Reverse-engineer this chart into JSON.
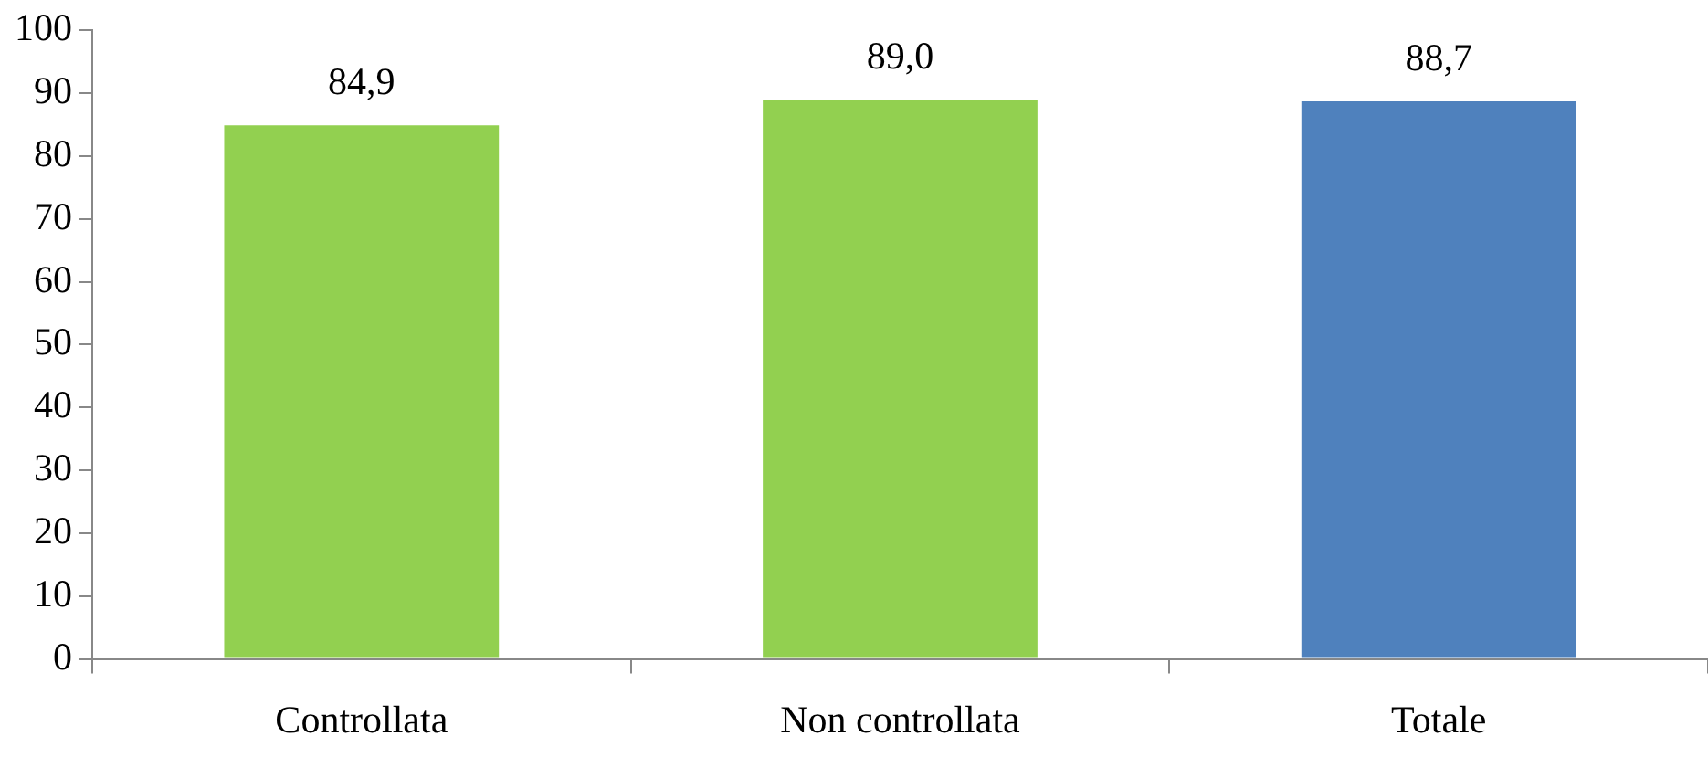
{
  "chart_data": {
    "type": "bar",
    "categories": [
      "Controllata",
      "Non controllata",
      "Totale"
    ],
    "values": [
      84.9,
      89.0,
      88.7
    ],
    "colors": [
      "#92d050",
      "#92d050",
      "#4f81bd"
    ],
    "value_labels": [
      "84,9",
      "89,0",
      "88,7"
    ],
    "ylim": [
      0,
      100
    ],
    "yticks": [
      0,
      10,
      20,
      30,
      40,
      50,
      60,
      70,
      80,
      90,
      100
    ],
    "grid": false,
    "legend": false
  }
}
